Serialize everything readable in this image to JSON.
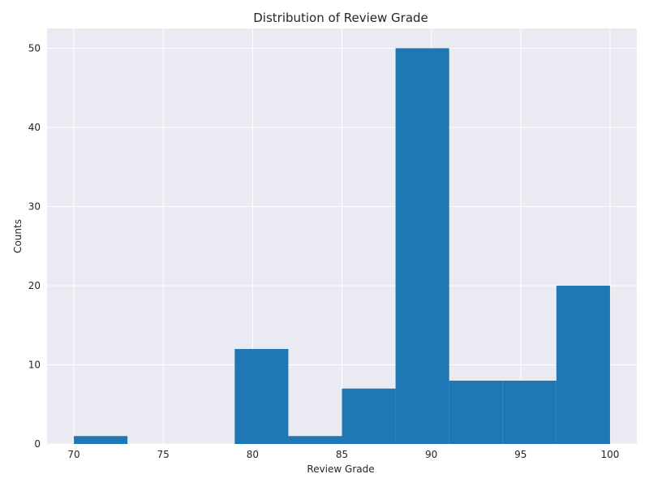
{
  "chart_data": {
    "type": "bar",
    "title": "Distribution of Review Grade",
    "xlabel": "Review Grade",
    "ylabel": "Counts",
    "xlim": [
      68.5,
      101.5
    ],
    "ylim": [
      0,
      52.5
    ],
    "xticks": [
      70,
      75,
      80,
      85,
      90,
      95,
      100
    ],
    "yticks": [
      0,
      10,
      20,
      30,
      40,
      50
    ],
    "grid": true,
    "background_color": "#eaeaf2",
    "bar_color": "#1f77b4",
    "bins": [
      {
        "start": 70,
        "end": 73,
        "count": 1
      },
      {
        "start": 73,
        "end": 76,
        "count": 0
      },
      {
        "start": 76,
        "end": 79,
        "count": 0
      },
      {
        "start": 79,
        "end": 82,
        "count": 12
      },
      {
        "start": 82,
        "end": 85,
        "count": 1
      },
      {
        "start": 85,
        "end": 88,
        "count": 7
      },
      {
        "start": 88,
        "end": 91,
        "count": 50
      },
      {
        "start": 91,
        "end": 94,
        "count": 8
      },
      {
        "start": 94,
        "end": 97,
        "count": 8
      },
      {
        "start": 97,
        "end": 100,
        "count": 20
      }
    ]
  }
}
